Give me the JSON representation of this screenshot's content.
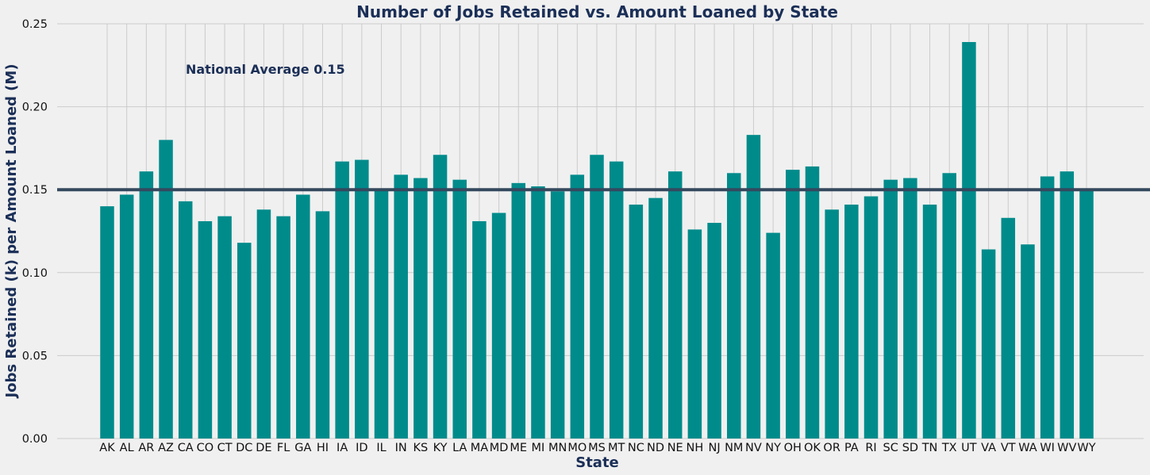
{
  "chart_data": {
    "type": "bar",
    "title": "Number of Jobs Retained vs. Amount Loaned by State",
    "xlabel": "State",
    "ylabel": "Jobs Retained (k) per Amount Loaned (M)",
    "ylim": [
      0,
      0.25
    ],
    "yticks": [
      0.0,
      0.05,
      0.1,
      0.15,
      0.2,
      0.25
    ],
    "ytick_labels": [
      "0.00",
      "0.05",
      "0.10",
      "0.15",
      "0.20",
      "0.25"
    ],
    "grid": true,
    "categories": [
      "AK",
      "AL",
      "AR",
      "AZ",
      "CA",
      "CO",
      "CT",
      "DC",
      "DE",
      "FL",
      "GA",
      "HI",
      "IA",
      "ID",
      "IL",
      "IN",
      "KS",
      "KY",
      "LA",
      "MA",
      "MD",
      "ME",
      "MI",
      "MN",
      "MO",
      "MS",
      "MT",
      "NC",
      "ND",
      "NE",
      "NH",
      "NJ",
      "NM",
      "NV",
      "NY",
      "OH",
      "OK",
      "OR",
      "PA",
      "RI",
      "SC",
      "SD",
      "TN",
      "TX",
      "UT",
      "VA",
      "VT",
      "WA",
      "WI",
      "WV",
      "WY"
    ],
    "values": [
      0.14,
      0.147,
      0.161,
      0.18,
      0.143,
      0.131,
      0.134,
      0.118,
      0.138,
      0.134,
      0.147,
      0.137,
      0.167,
      0.168,
      0.15,
      0.159,
      0.157,
      0.171,
      0.156,
      0.131,
      0.136,
      0.154,
      0.152,
      0.149,
      0.159,
      0.171,
      0.167,
      0.141,
      0.145,
      0.161,
      0.126,
      0.13,
      0.16,
      0.183,
      0.124,
      0.162,
      0.164,
      0.138,
      0.141,
      0.146,
      0.156,
      0.157,
      0.141,
      0.16,
      0.239,
      0.114,
      0.133,
      0.117,
      0.158,
      0.161,
      0.15
    ],
    "reference_line": {
      "value": 0.15,
      "label": "National Average 0.15"
    },
    "colors": {
      "bar": "#008b8b",
      "reference_line": "#34495e",
      "text": "#1b2f57",
      "grid": "#cbcbcb",
      "background": "#f0f0f0"
    }
  }
}
